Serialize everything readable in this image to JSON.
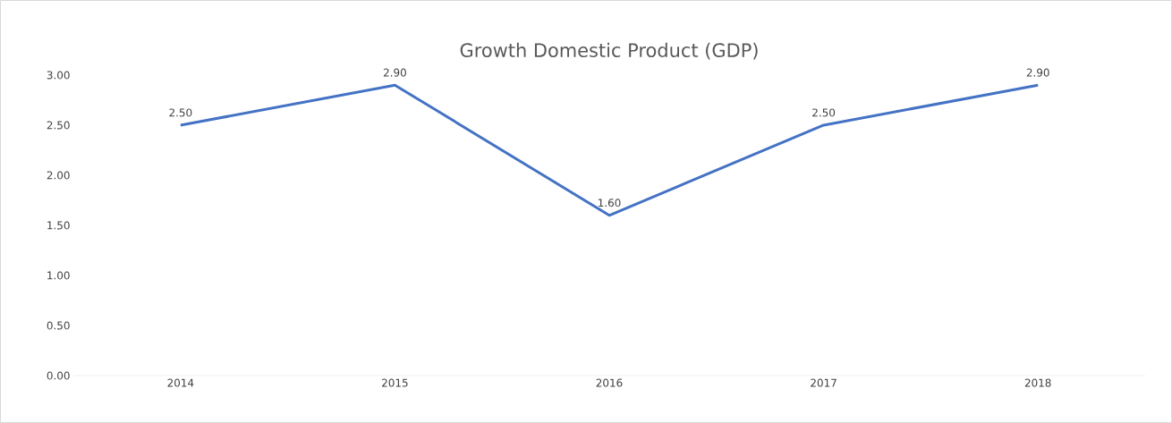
{
  "chart_data": {
    "type": "line",
    "title": "Growth Domestic Product (GDP)",
    "categories": [
      "2014",
      "2015",
      "2016",
      "2017",
      "2018"
    ],
    "values": [
      2.5,
      2.9,
      1.6,
      2.5,
      2.9
    ],
    "value_labels": [
      "2.50",
      "2.90",
      "1.60",
      "2.50",
      "2.90"
    ],
    "color": "#4472c4",
    "ylim": [
      0,
      3
    ],
    "yticks": [
      {
        "value": 0,
        "label": "0.00"
      },
      {
        "value": 0.5,
        "label": "0.50"
      },
      {
        "value": 1,
        "label": "1.00"
      },
      {
        "value": 1.5,
        "label": "1.50"
      },
      {
        "value": 2,
        "label": "2.00"
      },
      {
        "value": 2.5,
        "label": "2.50"
      },
      {
        "value": 3,
        "label": "3.00"
      }
    ]
  }
}
